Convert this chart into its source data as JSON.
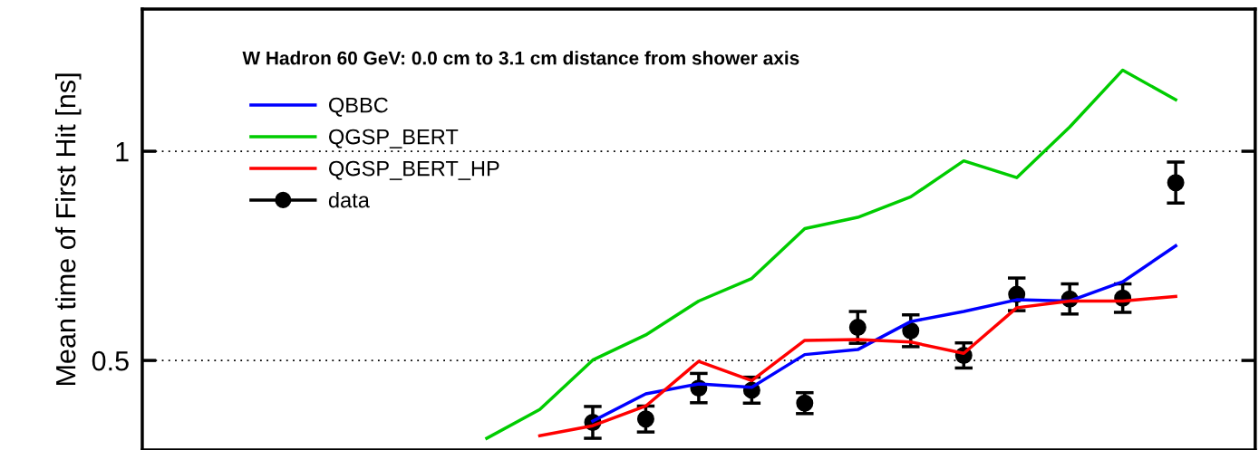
{
  "chart_data": {
    "type": "line",
    "title": "W Hadron 60 GeV: 0.0 cm to 3.1 cm distance from shower axis",
    "ylabel": "Mean time of First Hit [ns]",
    "categories": [
      null,
      null,
      null,
      null,
      null,
      null,
      null,
      null,
      null,
      null,
      null,
      null,
      null,
      null,
      null,
      null,
      null,
      null,
      null,
      null,
      null
    ],
    "series": [
      {
        "name": "QBBC",
        "color": "#0000ff",
        "values": [
          null,
          null,
          null,
          null,
          null,
          null,
          null,
          null,
          0.355,
          0.42,
          0.444,
          0.436,
          0.514,
          0.526,
          0.593,
          0.617,
          0.645,
          0.642,
          0.688,
          0.774,
          null
        ]
      },
      {
        "name": "QGSP_BERT",
        "color": "#00cc00",
        "values": [
          null,
          null,
          null,
          null,
          null,
          null,
          0.314,
          0.383,
          0.501,
          0.561,
          0.642,
          0.696,
          0.815,
          0.842,
          0.891,
          0.977,
          0.937,
          1.058,
          1.194,
          1.123,
          null
        ]
      },
      {
        "name": "QGSP_BERT_HP",
        "color": "#ff0000",
        "values": [
          null,
          null,
          null,
          null,
          null,
          null,
          null,
          0.32,
          0.344,
          0.391,
          0.498,
          0.452,
          0.548,
          0.55,
          0.544,
          0.517,
          0.626,
          0.642,
          0.642,
          0.653,
          null
        ]
      },
      {
        "name": "data",
        "type": "scatter",
        "color": "#000000",
        "marker": "circle",
        "values": [
          null,
          null,
          null,
          null,
          null,
          null,
          null,
          null,
          0.352,
          0.36,
          0.434,
          0.429,
          0.398,
          0.579,
          0.571,
          0.512,
          0.658,
          0.647,
          0.649,
          0.925,
          null
        ],
        "errors": [
          null,
          null,
          null,
          null,
          null,
          null,
          null,
          null,
          0.038,
          0.031,
          0.035,
          0.031,
          0.025,
          0.038,
          0.038,
          0.03,
          0.039,
          0.036,
          0.034,
          0.049,
          null
        ]
      }
    ],
    "ylim": [
      0.286,
      1.34
    ],
    "yticks": [
      0.5,
      1
    ],
    "grid": "y",
    "legend": "top left",
    "line_style": "solid"
  }
}
